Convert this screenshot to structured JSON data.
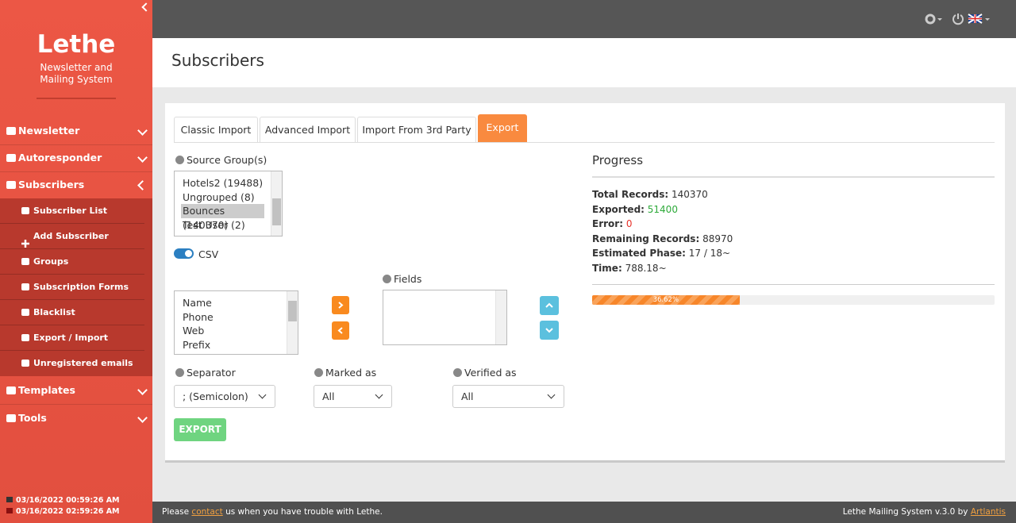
{
  "sidebar": {
    "brand": {
      "title": "Lethe",
      "subtitle": "Newsletter and Mailing System"
    },
    "menu": [
      "Newsletter",
      "Autoresponder",
      "Subscribers",
      "Templates",
      "Tools"
    ],
    "submenu": [
      "Subscriber List",
      "Add Subscriber",
      "Groups",
      "Subscription Forms",
      "Blacklist",
      "Export / Import",
      "Unregistered emails"
    ],
    "dates": [
      "03/16/2022 00:59:26 AM",
      "03/16/2022 02:59:26 AM"
    ]
  },
  "header": {
    "title": "Subscribers"
  },
  "tabs": [
    "Classic Import",
    "Advanced Import",
    "Import From 3rd Party",
    "Export"
  ],
  "form": {
    "source_label": "Source Group(s)",
    "source_groups": [
      "Hotels2 (19488)",
      "Ungrouped (8)",
      "Bounces (140370)",
      "Test User (2)"
    ],
    "csv_label": "CSV",
    "fields_label": "Fields",
    "available_fields": [
      "Name",
      "Phone",
      "Web",
      "Prefix"
    ],
    "separator_label": "Separator",
    "separator_value": "; (Semicolon)",
    "marked_label": "Marked as",
    "marked_value": "All",
    "verified_label": "Verified as",
    "verified_value": "All",
    "export_button": "EXPORT"
  },
  "progress": {
    "title": "Progress",
    "stats": [
      {
        "label": "Total Records:",
        "value": "140370"
      },
      {
        "label": "Exported:",
        "value": "51400"
      },
      {
        "label": "Error:",
        "value": "0"
      },
      {
        "label": "Remaining Records:",
        "value": "88970"
      },
      {
        "label": "Estimated Phase:",
        "value": "17 / 18~"
      },
      {
        "label": "Time:",
        "value": "788.18~"
      }
    ],
    "bar": {
      "value": 36.62,
      "label": "36.62%"
    }
  },
  "footer": {
    "left": [
      "Please",
      "contact",
      "us when you have trouble with Lethe."
    ],
    "right": [
      "Lethe Mailing System v.3.0 by",
      "Artlantis"
    ]
  }
}
